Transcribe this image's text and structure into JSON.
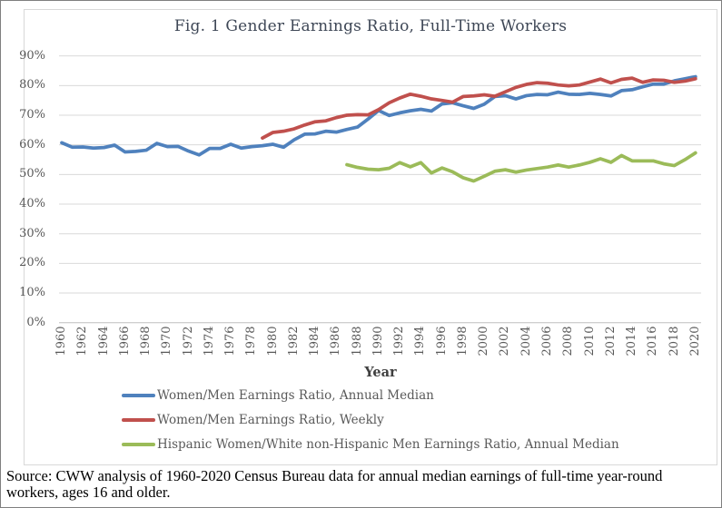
{
  "figure": {
    "source_note": "Source: CWW analysis of 1960-2020 Census Bureau data for annual median earnings of full-time year-round workers, ages 16 and older."
  },
  "palette": {
    "gridline": "#d9d9d9",
    "axis_line": "#bfbfbf",
    "tick_text": "#595959",
    "title_text": "#3e4756"
  },
  "chart_data": {
    "type": "line",
    "title": "Fig. 1 Gender Earnings Ratio, Full-Time Workers",
    "xlabel": "Year",
    "ylabel": "",
    "ylim": [
      0,
      90
    ],
    "y_ticks": [
      "0%",
      "10%",
      "20%",
      "30%",
      "40%",
      "50%",
      "60%",
      "70%",
      "80%",
      "90%"
    ],
    "x_ticks": [
      1960,
      1962,
      1964,
      1966,
      1968,
      1970,
      1972,
      1974,
      1976,
      1978,
      1980,
      1982,
      1984,
      1986,
      1988,
      1990,
      1992,
      1994,
      1996,
      1998,
      2000,
      2002,
      2004,
      2006,
      2008,
      2010,
      2012,
      2014,
      2016,
      2018,
      2020
    ],
    "grid": "horizontal",
    "legend_position": "bottom",
    "x_step_years": 1,
    "series": [
      {
        "name": "Women/Men Earnings Ratio, Annual Median",
        "color": "#4f81bd",
        "x_start": 1960,
        "values": [
          60.7,
          59.2,
          59.3,
          58.9,
          59.1,
          59.9,
          57.6,
          57.8,
          58.2,
          60.5,
          59.4,
          59.5,
          57.9,
          56.6,
          58.8,
          58.8,
          60.2,
          58.9,
          59.4,
          59.7,
          60.2,
          59.2,
          61.7,
          63.6,
          63.7,
          64.6,
          64.3,
          65.2,
          66.0,
          68.7,
          71.6,
          69.9,
          70.8,
          71.5,
          72.0,
          71.4,
          73.8,
          74.2,
          73.2,
          72.3,
          73.7,
          76.3,
          76.6,
          75.5,
          76.6,
          77.0,
          76.9,
          77.8,
          77.1,
          77.0,
          77.4,
          77.0,
          76.5,
          78.3,
          78.6,
          79.6,
          80.5,
          80.5,
          81.6,
          82.3,
          83.0
        ]
      },
      {
        "name": "Women/Men Earnings Ratio, Weekly",
        "color": "#c0504d",
        "x_start": 1979,
        "values": [
          62.3,
          64.2,
          64.6,
          65.4,
          66.7,
          67.8,
          68.1,
          69.2,
          70.0,
          70.2,
          70.1,
          71.9,
          74.2,
          75.8,
          77.1,
          76.4,
          75.5,
          75.0,
          74.4,
          76.3,
          76.5,
          76.9,
          76.4,
          77.9,
          79.4,
          80.4,
          81.0,
          80.8,
          80.2,
          79.9,
          80.2,
          81.2,
          82.2,
          80.9,
          82.1,
          82.5,
          81.1,
          81.9,
          81.8,
          81.1,
          81.5,
          82.3
        ]
      },
      {
        "name": "Hispanic Women/White non-Hispanic Men Earnings Ratio, Annual Median",
        "color": "#9bbb59",
        "x_start": 1987,
        "values": [
          53.3,
          52.4,
          51.8,
          51.6,
          52.1,
          54.0,
          52.6,
          54.0,
          50.5,
          52.2,
          50.9,
          48.9,
          47.8,
          49.4,
          51.1,
          51.6,
          50.8,
          51.5,
          52.0,
          52.5,
          53.2,
          52.5,
          53.2,
          54.1,
          55.3,
          54.1,
          56.4,
          54.6,
          54.6,
          54.6,
          53.6,
          53.0,
          55.0,
          57.3
        ]
      }
    ]
  }
}
